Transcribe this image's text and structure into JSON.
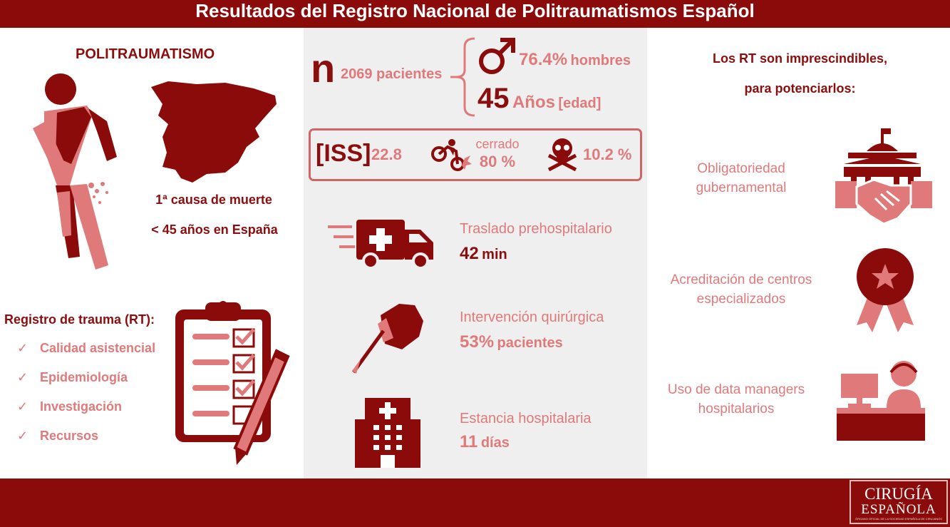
{
  "title": "Resultados del Registro Nacional de Politraumatismos Español",
  "left": {
    "heading": "POLITRAUMATISMO",
    "cause_line1": "1ª causa de muerte",
    "cause_line2": "< 45 años en España",
    "registry_heading": "Registro de trauma (RT):",
    "registry_items": [
      {
        "check": "✓",
        "label": "Calidad asistencial"
      },
      {
        "check": "✓",
        "label": "Epidemiología"
      },
      {
        "check": "✓",
        "label": "Investigación"
      },
      {
        "check": "✓",
        "label": "Recursos"
      }
    ]
  },
  "center": {
    "n_letter": "n",
    "patients": "2069 pacientes",
    "male_pct": "76.4%",
    "male_label": "hombres",
    "age_value": "45",
    "age_label": "Años",
    "age_note": "[edad]",
    "iss_label": "[ISS]",
    "iss_value": "22.8",
    "closed_label": "cerrado",
    "closed_value": "80 %",
    "mortality_value": "10.2 %",
    "transfer_label": "Traslado prehospitalario",
    "transfer_value": "42",
    "transfer_unit": "min",
    "surgery_label": "Intervención quirúrgica",
    "surgery_value": "53%",
    "surgery_unit": "pacientes",
    "stay_label": "Estancia hospitalaria",
    "stay_value": "11",
    "stay_unit": "días"
  },
  "right": {
    "heading_line1": "Los RT son imprescindibles,",
    "heading_line2": "para potenciarlos:",
    "item1_line1": "Obligatoriedad",
    "item1_line2": "gubernamental",
    "item2_line1": "Acreditación de centros",
    "item2_line2": "especializados",
    "item3_line1": "Uso de data managers",
    "item3_line2": "hospitalarios"
  },
  "logo": {
    "line1": "CIRUGÍA",
    "line2": "ESPAÑOLA",
    "small": "ÓRGANO OFICIAL DE LA SOCIEDAD ESPAÑOLA DE CIRUJANOS"
  },
  "colors": {
    "dark_red": "#8b0a0a",
    "light_red": "#e07a7a",
    "panel_gray": "#efefef"
  },
  "icons": [
    "injured-person-icon",
    "spain-map-icon",
    "clipboard-checklist-icon",
    "pencil-icon",
    "male-symbol-icon",
    "motorcycle-crash-icon",
    "skull-crossbones-icon",
    "ambulance-icon",
    "scalpel-hand-icon",
    "hospital-building-icon",
    "government-handshake-icon",
    "award-ribbon-icon",
    "data-manager-desk-icon"
  ]
}
